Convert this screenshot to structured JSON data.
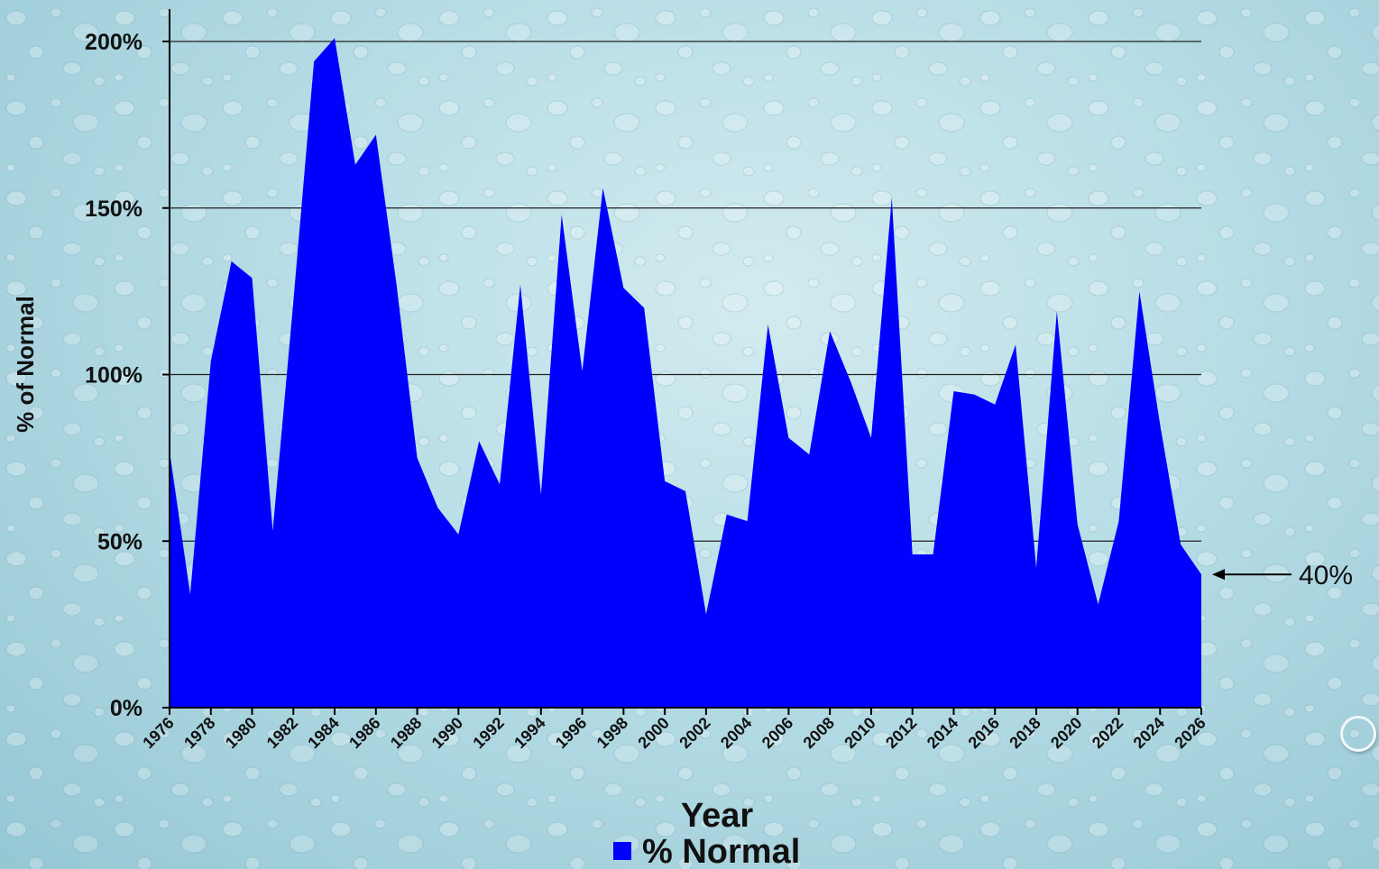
{
  "chart_data": {
    "type": "area",
    "title": "",
    "xlabel": "Year",
    "ylabel": "% of Normal",
    "series": [
      {
        "name": "% Normal",
        "color": "#0000ff",
        "x": [
          1976,
          1977,
          1978,
          1979,
          1980,
          1981,
          1982,
          1983,
          1984,
          1985,
          1986,
          1987,
          1988,
          1989,
          1990,
          1991,
          1992,
          1993,
          1994,
          1995,
          1996,
          1997,
          1998,
          1999,
          2000,
          2001,
          2002,
          2003,
          2004,
          2005,
          2006,
          2007,
          2008,
          2009,
          2010,
          2011,
          2012,
          2013,
          2014,
          2015,
          2016,
          2017,
          2018,
          2019,
          2020,
          2021,
          2022,
          2023,
          2024,
          2025,
          2026
        ],
        "values": [
          77,
          34,
          104,
          134,
          129,
          53,
          122,
          194,
          201,
          163,
          172,
          127,
          75,
          60,
          52,
          80,
          67,
          127,
          64,
          148,
          101,
          156,
          126,
          120,
          68,
          65,
          28,
          58,
          56,
          115,
          81,
          76,
          113,
          98,
          81,
          153,
          46,
          46,
          95,
          94,
          91,
          109,
          42,
          119,
          55,
          31,
          56,
          125,
          85,
          49,
          40
        ]
      }
    ],
    "x_ticks": [
      "1976",
      "1978",
      "1980",
      "1982",
      "1984",
      "1986",
      "1988",
      "1990",
      "1992",
      "1994",
      "1996",
      "1998",
      "2000",
      "2002",
      "2004",
      "2006",
      "2008",
      "2010",
      "2012",
      "2014",
      "2016",
      "2018",
      "2020",
      "2022",
      "2024",
      "2026"
    ],
    "y_ticks": [
      "0%",
      "50%",
      "100%",
      "150%",
      "200%"
    ],
    "xlim": [
      1976,
      2026
    ],
    "ylim": [
      0,
      200
    ],
    "grid": "horizontal",
    "legend": "bottom",
    "annotation": {
      "text": "40%",
      "x": 2026,
      "y": 40
    }
  }
}
